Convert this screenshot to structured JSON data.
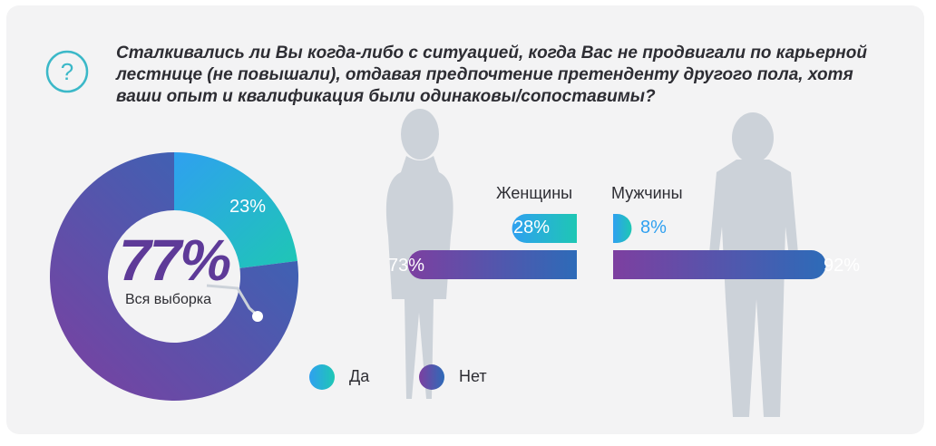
{
  "question": "Сталкивались ли Вы когда-либо с ситуацией, когда Вас не продвигали по карьерной лестнице (не повышали), отдавая предпочтение претенденту другого пола, хотя ваши опыт и квалификация были одинаковы/сопоставимы?",
  "colors": {
    "yes_start": "#2fa0f0",
    "yes_end": "#1ec7b4",
    "no_start": "#7d3fa0",
    "no_end": "#2d6bb8",
    "silhouette": "#ccd2d9",
    "card": "#f3f3f4",
    "icon": "#3bb8c8"
  },
  "chart_data": [
    {
      "type": "pie",
      "title": "Вся выборка",
      "categories": [
        "Да",
        "Нет"
      ],
      "values": [
        23,
        77
      ],
      "labels": [
        "23%",
        "77%"
      ]
    },
    {
      "type": "bar",
      "categories": [
        "Женщины",
        "Мужчины"
      ],
      "series": [
        {
          "name": "Да",
          "values": [
            28,
            8
          ],
          "labels": [
            "28%",
            "8%"
          ]
        },
        {
          "name": "Нет",
          "values": [
            73,
            92
          ],
          "labels": [
            "73%",
            "92%"
          ]
        }
      ]
    }
  ],
  "legend": [
    {
      "label": "Да"
    },
    {
      "label": "Нет"
    }
  ]
}
